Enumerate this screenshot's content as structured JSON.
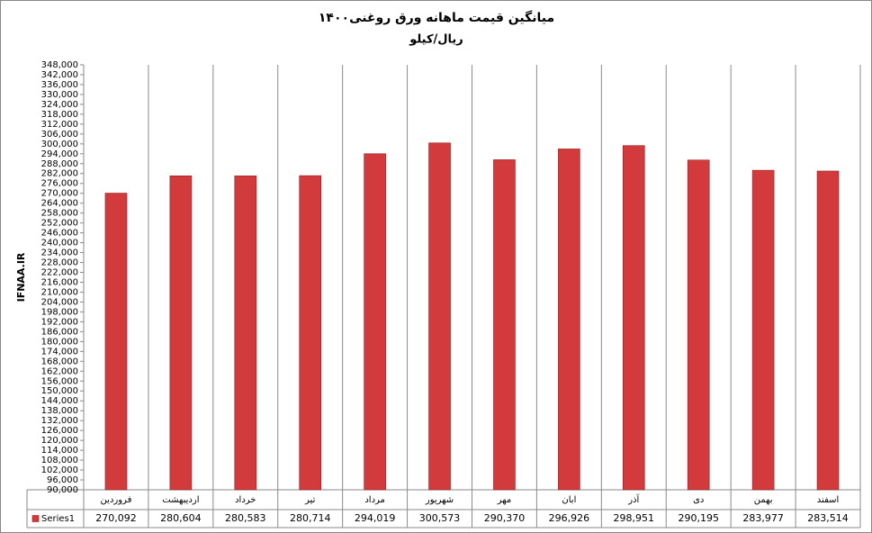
{
  "chart_data": {
    "type": "bar",
    "title": "میانگین قیمت ماهانه  ورق روغنی۱۴۰۰",
    "subtitle": "ریال/کیلو",
    "y_label": "IFNAA.IR",
    "categories": [
      "فروردین",
      "اردیبهشت",
      "خرداد",
      "تیر",
      "مرداد",
      "شهریور",
      "مهر",
      "ابان",
      "آذر",
      "دی",
      "بهمن",
      "اسفند"
    ],
    "series": [
      {
        "name": "Series1",
        "color": "#d33a3c",
        "values": [
          270092,
          280604,
          280583,
          280714,
          294019,
          300573,
          290370,
          296926,
          298951,
          290195,
          283977,
          283514
        ],
        "value_labels": [
          "270,092",
          "280,604",
          "280,583",
          "280,714",
          "294,019",
          "300,573",
          "290,370",
          "296,926",
          "298,951",
          "290,195",
          "283,977",
          "283,514"
        ]
      }
    ],
    "ylim": [
      90000,
      348000
    ],
    "yticks": [
      {
        "value": 90000,
        "label": "90,000"
      },
      {
        "value": 96000,
        "label": "96,000"
      },
      {
        "value": 102000,
        "label": "102,000"
      },
      {
        "value": 108000,
        "label": "108,000"
      },
      {
        "value": 114000,
        "label": "114,000"
      },
      {
        "value": 120000,
        "label": "120,000"
      },
      {
        "value": 126000,
        "label": "126,000"
      },
      {
        "value": 132000,
        "label": "132,000"
      },
      {
        "value": 138000,
        "label": "138,000"
      },
      {
        "value": 144000,
        "label": "144,000"
      },
      {
        "value": 150000,
        "label": "150,000"
      },
      {
        "value": 156000,
        "label": "156,000"
      },
      {
        "value": 162000,
        "label": "162,000"
      },
      {
        "value": 168000,
        "label": "168,000"
      },
      {
        "value": 174000,
        "label": "174,000"
      },
      {
        "value": 180000,
        "label": "180,000"
      },
      {
        "value": 186000,
        "label": "186,000"
      },
      {
        "value": 192000,
        "label": "192,000"
      },
      {
        "value": 198000,
        "label": "198,000"
      },
      {
        "value": 204000,
        "label": "204,000"
      },
      {
        "value": 210000,
        "label": "210,000"
      },
      {
        "value": 216000,
        "label": "216,000"
      },
      {
        "value": 222000,
        "label": "222,000"
      },
      {
        "value": 228000,
        "label": "228,000"
      },
      {
        "value": 234000,
        "label": "234,000"
      },
      {
        "value": 240000,
        "label": "240,000"
      },
      {
        "value": 246000,
        "label": "246,000"
      },
      {
        "value": 252000,
        "label": "252,000"
      },
      {
        "value": 258000,
        "label": "258,000"
      },
      {
        "value": 264000,
        "label": "264,000"
      },
      {
        "value": 270000,
        "label": "270,000"
      },
      {
        "value": 276000,
        "label": "276,000"
      },
      {
        "value": 282000,
        "label": "282,000"
      },
      {
        "value": 288000,
        "label": "288,000"
      },
      {
        "value": 294000,
        "label": "294,000"
      },
      {
        "value": 300000,
        "label": "300,000"
      },
      {
        "value": 306000,
        "label": "306,000"
      },
      {
        "value": 312000,
        "label": "312,000"
      },
      {
        "value": 318000,
        "label": "318,000"
      },
      {
        "value": 324000,
        "label": "324,000"
      },
      {
        "value": 330000,
        "label": "330,000"
      },
      {
        "value": 336000,
        "label": "336,000"
      },
      {
        "value": 342000,
        "label": "342,000"
      },
      {
        "value": 348000,
        "label": "348,000"
      }
    ],
    "grid": false
  }
}
